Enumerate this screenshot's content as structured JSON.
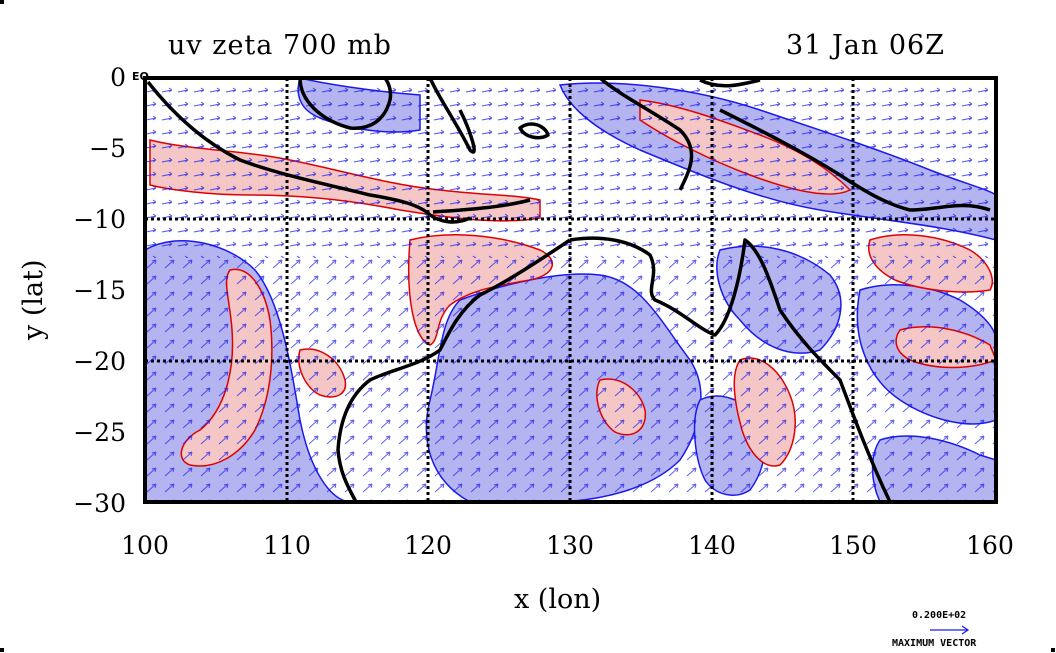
{
  "title": "uv zeta 700 mb",
  "time": "31 Jan 06Z",
  "xlabel": "x (lon)",
  "ylabel": "y (lat)",
  "equator_label": "EQ",
  "vector_value": "0.200E+02",
  "vector_label": "MAXIMUM VECTOR",
  "x_ticks": [
    "100",
    "110",
    "120",
    "130",
    "140",
    "150",
    "160"
  ],
  "y_ticks": [
    "0",
    "−5",
    "−10",
    "−15",
    "−20",
    "−25",
    "−30"
  ],
  "chart_data": {
    "type": "heatmap",
    "title": "uv zeta 700 mb",
    "xlabel": "x (lon)",
    "ylabel": "y (lat)",
    "xlim": [
      100,
      160
    ],
    "ylim": [
      -30,
      0
    ],
    "x_gridlines": [
      110,
      120,
      130,
      140,
      150
    ],
    "y_gridlines": [
      -10,
      -20
    ],
    "colors": {
      "positive_fill": "#f4c6c6",
      "positive_contour": "#e00000",
      "negative_fill": "#b4b4f0",
      "negative_contour": "#0000e6",
      "coastline": "#000000",
      "vectors": "#0000e6"
    }
  }
}
